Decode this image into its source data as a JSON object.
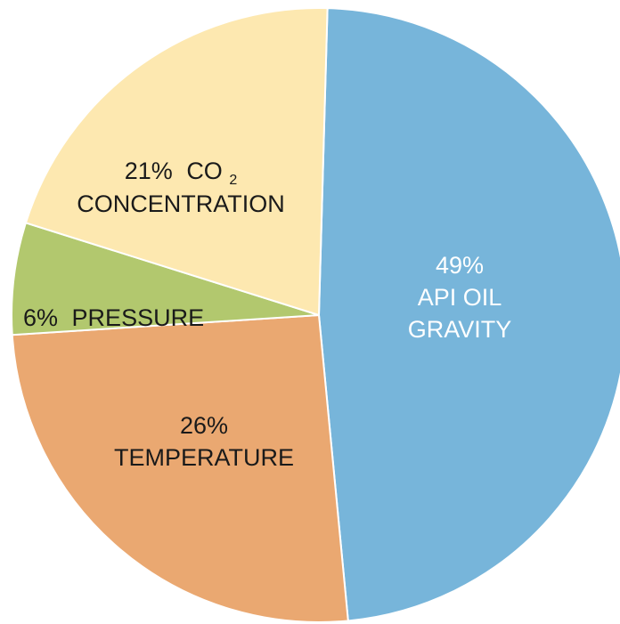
{
  "chart_data": {
    "type": "pie",
    "slices": [
      {
        "key": "api",
        "percent_label": "49%",
        "label_lines": [
          "API OIL",
          "GRAVITY"
        ],
        "value": 49,
        "color": "#77b5da"
      },
      {
        "key": "temperature",
        "percent_label": "26%",
        "label_lines": [
          "TEMPERATURE"
        ],
        "value": 26,
        "color": "#eaa871"
      },
      {
        "key": "pressure",
        "percent_label": "6%",
        "label_lines": [
          "PRESSURE"
        ],
        "value": 6,
        "color": "#b2c86e"
      },
      {
        "key": "co2",
        "percent_label": "21%",
        "co2_main": "CO",
        "co2_sub": "2",
        "label_lines": [
          "CONCENTRATION"
        ],
        "value": 21,
        "color": "#fde8b0"
      }
    ]
  }
}
